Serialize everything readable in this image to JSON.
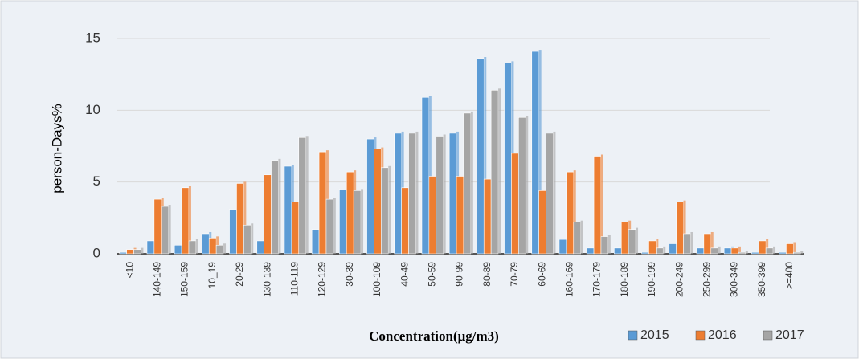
{
  "chart_data": {
    "type": "bar",
    "x_label": "Concentration(μg/m3)",
    "y_label": "person-Days%",
    "categories": [
      "<10",
      "140-149",
      "150-159",
      "10_19",
      "20-29",
      "130-139",
      "110-119",
      "120-129",
      "30-39",
      "100-109",
      "40-49",
      "50-59",
      "90-99",
      "80-89",
      "70-79",
      "60-69",
      "160-169",
      "170-179",
      "180-189",
      "190-199",
      "200-249",
      "250-299",
      "300-349",
      "350-399",
      ">=400"
    ],
    "series": [
      {
        "name": "2015",
        "color": "#5b9bd5",
        "values": [
          0.1,
          0.9,
          0.6,
          1.4,
          3.1,
          0.9,
          6.1,
          1.7,
          4.5,
          8.0,
          8.4,
          10.9,
          8.4,
          13.6,
          13.3,
          14.1,
          1.0,
          0.4,
          0.4,
          0.1,
          0.7,
          0.4,
          0.4,
          0.1,
          0.1
        ]
      },
      {
        "name": "2016",
        "color": "#ed7d31",
        "values": [
          0.3,
          3.8,
          4.6,
          1.1,
          4.9,
          5.5,
          3.6,
          7.1,
          5.7,
          7.3,
          4.6,
          5.4,
          5.4,
          5.2,
          7.0,
          4.4,
          5.7,
          6.8,
          2.2,
          0.9,
          3.6,
          1.4,
          0.4,
          0.9,
          0.7
        ]
      },
      {
        "name": "2017",
        "color": "#a5a5a5",
        "values": [
          0.3,
          3.3,
          0.9,
          0.6,
          2.0,
          6.5,
          8.1,
          3.8,
          4.4,
          6.0,
          8.4,
          8.2,
          9.8,
          11.4,
          9.5,
          8.4,
          2.2,
          1.2,
          1.7,
          0.4,
          1.4,
          0.4,
          0.1,
          0.4,
          0.1
        ]
      }
    ],
    "ylim": [
      0,
      15
    ],
    "yticks": [
      0,
      5,
      10,
      15
    ],
    "grid": true,
    "legend": "bottom-right"
  }
}
